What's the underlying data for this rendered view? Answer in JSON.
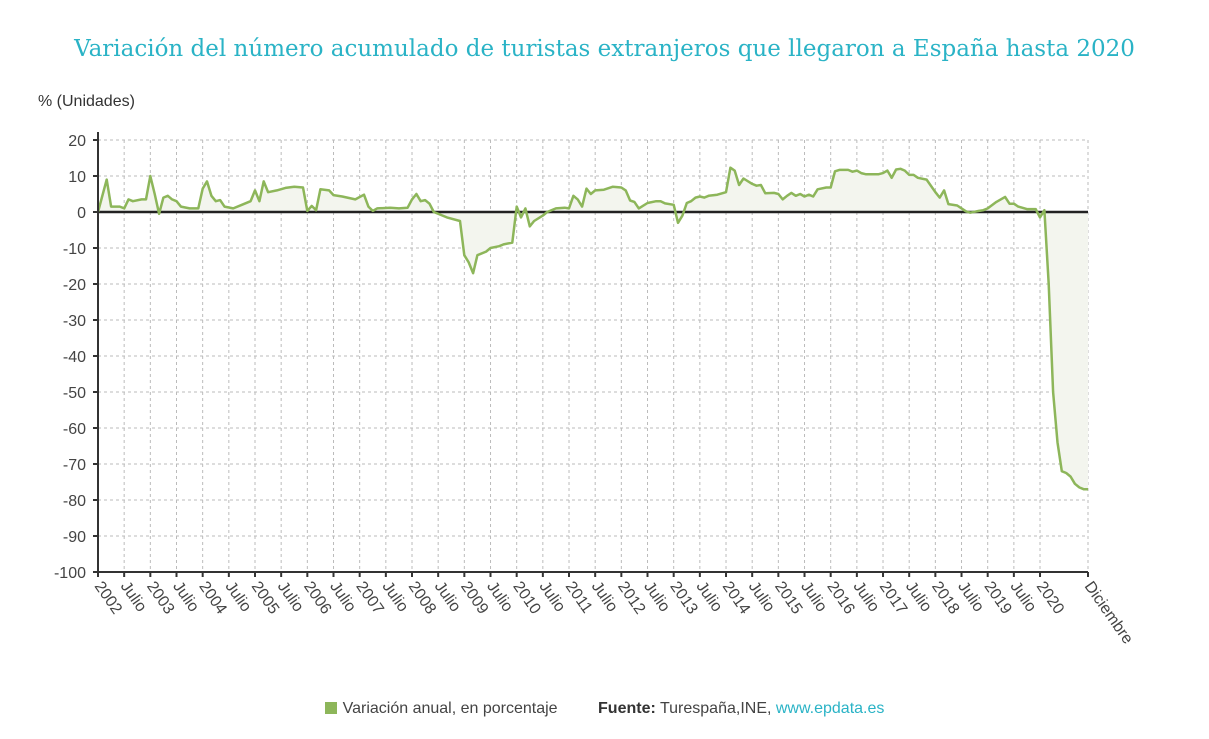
{
  "title": "Variación del número acumulado de turistas extranjeros que llegaron a España hasta 2020",
  "colors": {
    "title": "#2ab3c6",
    "series": "#8db65a",
    "area": "#f3f5ee",
    "zero_line": "#222222",
    "grid": "#bbbbbb"
  },
  "legend": {
    "series_label": "Variación anual, en porcentaje",
    "source_label": "Fuente:",
    "source_text": "Turespaña,INE, ",
    "source_link": "www.epdata.es"
  },
  "chart_data": {
    "type": "area",
    "title": "Variación del número acumulado de turistas extranjeros que llegaron a España hasta 2020",
    "ylabel": "% (Unidades)",
    "xlabel": "",
    "ylim": [
      -100,
      20
    ],
    "yticks": [
      20,
      10,
      0,
      -10,
      -20,
      -30,
      -40,
      -50,
      -60,
      -70,
      -80,
      -90,
      -100
    ],
    "xlim": [
      "2002-01",
      "2020-12"
    ],
    "xticks": [
      {
        "date": "2002-01",
        "label": "2002"
      },
      {
        "date": "2002-07",
        "label": "Julio"
      },
      {
        "date": "2003-01",
        "label": "2003"
      },
      {
        "date": "2003-07",
        "label": "Julio"
      },
      {
        "date": "2004-01",
        "label": "2004"
      },
      {
        "date": "2004-07",
        "label": "Julio"
      },
      {
        "date": "2005-01",
        "label": "2005"
      },
      {
        "date": "2005-07",
        "label": "Julio"
      },
      {
        "date": "2006-01",
        "label": "2006"
      },
      {
        "date": "2006-07",
        "label": "Julio"
      },
      {
        "date": "2007-01",
        "label": "2007"
      },
      {
        "date": "2007-07",
        "label": "Julio"
      },
      {
        "date": "2008-01",
        "label": "2008"
      },
      {
        "date": "2008-07",
        "label": "Julio"
      },
      {
        "date": "2009-01",
        "label": "2009"
      },
      {
        "date": "2009-07",
        "label": "Julio"
      },
      {
        "date": "2010-01",
        "label": "2010"
      },
      {
        "date": "2010-07",
        "label": "Julio"
      },
      {
        "date": "2011-01",
        "label": "2011"
      },
      {
        "date": "2011-07",
        "label": "Julio"
      },
      {
        "date": "2012-01",
        "label": "2012"
      },
      {
        "date": "2012-07",
        "label": "Julio"
      },
      {
        "date": "2013-01",
        "label": "2013"
      },
      {
        "date": "2013-07",
        "label": "Julio"
      },
      {
        "date": "2014-01",
        "label": "2014"
      },
      {
        "date": "2014-07",
        "label": "Julio"
      },
      {
        "date": "2015-01",
        "label": "2015"
      },
      {
        "date": "2015-07",
        "label": "Julio"
      },
      {
        "date": "2016-01",
        "label": "2016"
      },
      {
        "date": "2016-07",
        "label": "Julio"
      },
      {
        "date": "2017-01",
        "label": "2017"
      },
      {
        "date": "2017-07",
        "label": "Julio"
      },
      {
        "date": "2018-01",
        "label": "2018"
      },
      {
        "date": "2018-07",
        "label": "Julio"
      },
      {
        "date": "2019-01",
        "label": "2019"
      },
      {
        "date": "2019-07",
        "label": "Julio"
      },
      {
        "date": "2020-01",
        "label": "2020"
      },
      {
        "date": "2020-12",
        "label": "Diciembre"
      }
    ],
    "grid": true,
    "legend_position": "bottom",
    "series": [
      {
        "name": "Variación anual, en porcentaje",
        "points": [
          [
            "2002-01",
            0
          ],
          [
            "2002-03",
            9
          ],
          [
            "2002-04",
            1.5
          ],
          [
            "2002-06",
            1.5
          ],
          [
            "2002-07",
            1
          ],
          [
            "2002-08",
            3.5
          ],
          [
            "2002-09",
            3
          ],
          [
            "2002-11",
            3.5
          ],
          [
            "2002-12",
            3.5
          ],
          [
            "2003-01",
            10
          ],
          [
            "2003-02",
            5
          ],
          [
            "2003-03",
            -0.5
          ],
          [
            "2003-04",
            4
          ],
          [
            "2003-05",
            4.5
          ],
          [
            "2003-06",
            3.5
          ],
          [
            "2003-07",
            3
          ],
          [
            "2003-08",
            1.5
          ],
          [
            "2003-10",
            1
          ],
          [
            "2003-12",
            1
          ],
          [
            "2004-01",
            6.5
          ],
          [
            "2004-02",
            8.5
          ],
          [
            "2004-03",
            4.5
          ],
          [
            "2004-04",
            3
          ],
          [
            "2004-05",
            3.3
          ],
          [
            "2004-06",
            1.5
          ],
          [
            "2004-08",
            1
          ],
          [
            "2004-10",
            2
          ],
          [
            "2004-12",
            3
          ],
          [
            "2005-01",
            6
          ],
          [
            "2005-02",
            3
          ],
          [
            "2005-03",
            8.5
          ],
          [
            "2005-04",
            5.5
          ],
          [
            "2005-06",
            6
          ],
          [
            "2005-08",
            6.7
          ],
          [
            "2005-10",
            7
          ],
          [
            "2005-12",
            6.8
          ],
          [
            "2006-01",
            0.3
          ],
          [
            "2006-02",
            1.7
          ],
          [
            "2006-03",
            0.5
          ],
          [
            "2006-04",
            6.3
          ],
          [
            "2006-06",
            6
          ],
          [
            "2006-07",
            4.7
          ],
          [
            "2006-09",
            4.3
          ],
          [
            "2006-12",
            3.5
          ],
          [
            "2007-02",
            4.8
          ],
          [
            "2007-03",
            1.5
          ],
          [
            "2007-04",
            0.3
          ],
          [
            "2007-05",
            1
          ],
          [
            "2007-08",
            1.2
          ],
          [
            "2007-10",
            1
          ],
          [
            "2007-12",
            1.2
          ],
          [
            "2008-01",
            3.5
          ],
          [
            "2008-02",
            5
          ],
          [
            "2008-03",
            3
          ],
          [
            "2008-04",
            3.3
          ],
          [
            "2008-05",
            2.3
          ],
          [
            "2008-06",
            0
          ],
          [
            "2008-09",
            -1.5
          ],
          [
            "2008-12",
            -2.5
          ],
          [
            "2009-01",
            -12
          ],
          [
            "2009-02",
            -14
          ],
          [
            "2009-03",
            -17
          ],
          [
            "2009-04",
            -12
          ],
          [
            "2009-06",
            -11
          ],
          [
            "2009-07",
            -10
          ],
          [
            "2009-09",
            -9.5
          ],
          [
            "2009-10",
            -9
          ],
          [
            "2009-12",
            -8.5
          ],
          [
            "2010-01",
            1.5
          ],
          [
            "2010-02",
            -1.5
          ],
          [
            "2010-03",
            1
          ],
          [
            "2010-04",
            -4
          ],
          [
            "2010-05",
            -2.5
          ],
          [
            "2010-07",
            -1
          ],
          [
            "2010-08",
            0
          ],
          [
            "2010-10",
            1
          ],
          [
            "2010-12",
            1.2
          ],
          [
            "2011-01",
            1
          ],
          [
            "2011-02",
            4.5
          ],
          [
            "2011-03",
            3.5
          ],
          [
            "2011-04",
            1.5
          ],
          [
            "2011-05",
            6.5
          ],
          [
            "2011-06",
            5
          ],
          [
            "2011-07",
            6
          ],
          [
            "2011-09",
            6.2
          ],
          [
            "2011-11",
            7
          ],
          [
            "2012-01",
            6.8
          ],
          [
            "2012-02",
            6
          ],
          [
            "2012-03",
            3.2
          ],
          [
            "2012-04",
            2.8
          ],
          [
            "2012-05",
            1
          ],
          [
            "2012-07",
            2.5
          ],
          [
            "2012-09",
            3
          ],
          [
            "2012-10",
            3
          ],
          [
            "2012-11",
            2.4
          ],
          [
            "2013-01",
            2
          ],
          [
            "2013-02",
            -3
          ],
          [
            "2013-03",
            -1
          ],
          [
            "2013-04",
            2.5
          ],
          [
            "2013-05",
            3
          ],
          [
            "2013-06",
            4
          ],
          [
            "2013-07",
            4.3
          ],
          [
            "2013-08",
            4
          ],
          [
            "2013-09",
            4.5
          ],
          [
            "2013-11",
            4.8
          ],
          [
            "2014-01",
            5.5
          ],
          [
            "2014-02",
            12.3
          ],
          [
            "2014-03",
            11.5
          ],
          [
            "2014-04",
            7.5
          ],
          [
            "2014-05",
            9.3
          ],
          [
            "2014-07",
            7.8
          ],
          [
            "2014-08",
            7.3
          ],
          [
            "2014-09",
            7.5
          ],
          [
            "2014-10",
            5.2
          ],
          [
            "2014-12",
            5.3
          ],
          [
            "2015-01",
            5
          ],
          [
            "2015-02",
            3.5
          ],
          [
            "2015-03",
            4.5
          ],
          [
            "2015-04",
            5.3
          ],
          [
            "2015-05",
            4.5
          ],
          [
            "2015-06",
            5
          ],
          [
            "2015-07",
            4.3
          ],
          [
            "2015-08",
            4.8
          ],
          [
            "2015-09",
            4.3
          ],
          [
            "2015-10",
            6.3
          ],
          [
            "2015-12",
            6.8
          ],
          [
            "2016-01",
            6.8
          ],
          [
            "2016-02",
            11.3
          ],
          [
            "2016-03",
            11.7
          ],
          [
            "2016-05",
            11.7
          ],
          [
            "2016-06",
            11.2
          ],
          [
            "2016-07",
            11.5
          ],
          [
            "2016-08",
            10.8
          ],
          [
            "2016-09",
            10.5
          ],
          [
            "2016-12",
            10.5
          ],
          [
            "2017-01",
            10.8
          ],
          [
            "2017-02",
            11.5
          ],
          [
            "2017-03",
            9.5
          ],
          [
            "2017-04",
            11.8
          ],
          [
            "2017-05",
            12
          ],
          [
            "2017-06",
            11.5
          ],
          [
            "2017-07",
            10.3
          ],
          [
            "2017-08",
            10.3
          ],
          [
            "2017-09",
            9.5
          ],
          [
            "2017-11",
            9
          ],
          [
            "2018-01",
            5.5
          ],
          [
            "2018-02",
            4
          ],
          [
            "2018-03",
            6
          ],
          [
            "2018-04",
            2.2
          ],
          [
            "2018-06",
            1.8
          ],
          [
            "2018-08",
            0.2
          ],
          [
            "2018-09",
            -0.2
          ],
          [
            "2018-11",
            0.3
          ],
          [
            "2018-12",
            0.5
          ],
          [
            "2019-01",
            1
          ],
          [
            "2019-03",
            2.8
          ],
          [
            "2019-05",
            4.2
          ],
          [
            "2019-06",
            2.3
          ],
          [
            "2019-07",
            2.3
          ],
          [
            "2019-08",
            1.5
          ],
          [
            "2019-10",
            0.8
          ],
          [
            "2019-12",
            0.8
          ],
          [
            "2020-01",
            -1.5
          ],
          [
            "2020-02",
            0.5
          ],
          [
            "2020-03",
            -20
          ],
          [
            "2020-04",
            -50
          ],
          [
            "2020-05",
            -64
          ],
          [
            "2020-06",
            -72
          ],
          [
            "2020-07",
            -72.5
          ],
          [
            "2020-08",
            -73.5
          ],
          [
            "2020-09",
            -75.5
          ],
          [
            "2020-10",
            -76.5
          ],
          [
            "2020-11",
            -77
          ],
          [
            "2020-12",
            -77
          ]
        ]
      }
    ]
  }
}
